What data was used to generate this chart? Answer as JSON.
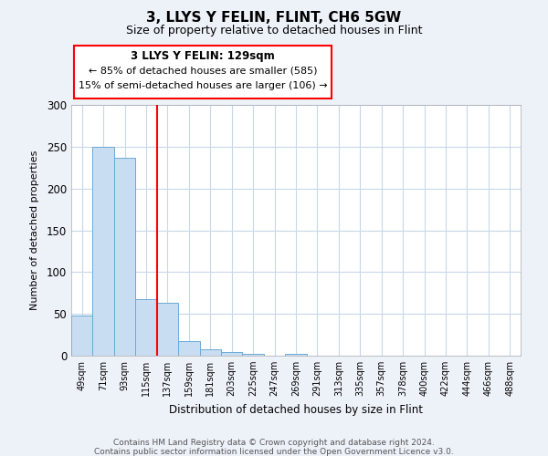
{
  "title": "3, LLYS Y FELIN, FLINT, CH6 5GW",
  "subtitle": "Size of property relative to detached houses in Flint",
  "xlabel": "Distribution of detached houses by size in Flint",
  "ylabel": "Number of detached properties",
  "bar_labels": [
    "49sqm",
    "71sqm",
    "93sqm",
    "115sqm",
    "137sqm",
    "159sqm",
    "181sqm",
    "203sqm",
    "225sqm",
    "247sqm",
    "269sqm",
    "291sqm",
    "313sqm",
    "335sqm",
    "357sqm",
    "378sqm",
    "400sqm",
    "422sqm",
    "444sqm",
    "466sqm",
    "488sqm"
  ],
  "bar_values": [
    48,
    250,
    237,
    68,
    63,
    18,
    8,
    4,
    2,
    0,
    2,
    0,
    0,
    0,
    0,
    0,
    0,
    0,
    0,
    0,
    0
  ],
  "bar_color": "#c9ddf2",
  "bar_edge_color": "#6aaad4",
  "vline_color": "red",
  "vline_x_index": 4,
  "annotation_title": "3 LLYS Y FELIN: 129sqm",
  "annotation_line1": "← 85% of detached houses are smaller (585)",
  "annotation_line2": "15% of semi-detached houses are larger (106) →",
  "annotation_box_edgecolor": "red",
  "annotation_box_facecolor": "white",
  "ylim": [
    0,
    300
  ],
  "yticks": [
    0,
    50,
    100,
    150,
    200,
    250,
    300
  ],
  "footer1": "Contains HM Land Registry data © Crown copyright and database right 2024.",
  "footer2": "Contains public sector information licensed under the Open Government Licence v3.0.",
  "bg_color": "#edf2f9",
  "plot_bg_color": "#ffffff",
  "grid_color": "#c8d8ea",
  "title_fontsize": 11,
  "subtitle_fontsize": 9
}
